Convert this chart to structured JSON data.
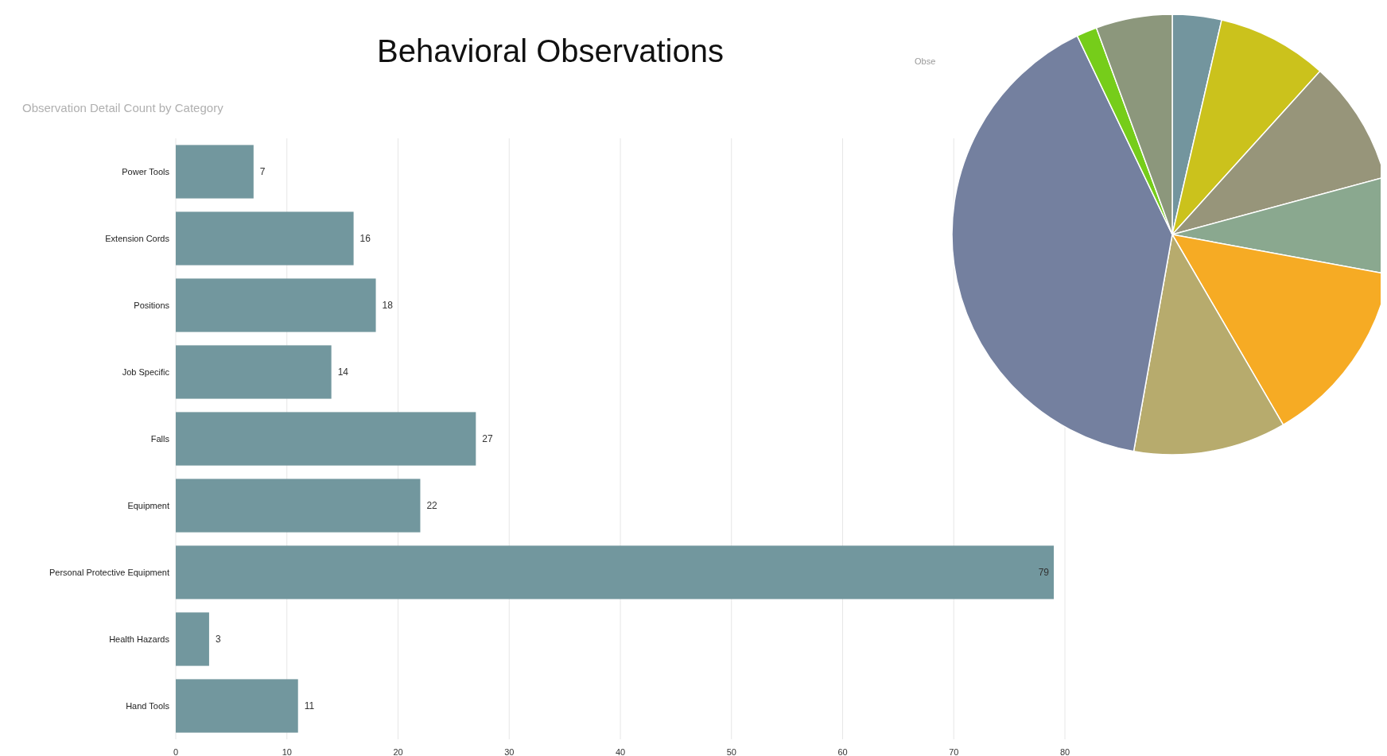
{
  "chart_data": [
    {
      "type": "bar",
      "title": "Behavioral Observations",
      "subtitle": "Observation Detail Count by Category",
      "orientation": "horizontal",
      "categories": [
        "Power Tools",
        "Extension Cords",
        "Positions",
        "Job Specific",
        "Falls",
        "Equipment",
        "Personal Protective Equipment",
        "Health Hazards",
        "Hand Tools"
      ],
      "values": [
        7,
        16,
        18,
        14,
        27,
        22,
        79,
        3,
        11
      ],
      "color": "#72979e",
      "xlim": [
        0,
        80
      ],
      "xticks": [
        0,
        10,
        20,
        30,
        40,
        50,
        60,
        70,
        80
      ],
      "grid": "x",
      "data_labels": true,
      "annotations": [
        "Obse"
      ]
    },
    {
      "type": "pie",
      "categories": [
        null,
        null,
        null,
        null,
        null,
        null,
        null,
        null,
        null
      ],
      "values": [
        3.6,
        8.1,
        9.1,
        7.1,
        13.7,
        11.2,
        40.1,
        1.5,
        5.6
      ],
      "colors": [
        "#73959e",
        "#cbc21c",
        "#97957a",
        "#8aa88f",
        "#f6ab24",
        "#b7ab6d",
        "#74809f",
        "#76cd1a",
        "#8c977c"
      ]
    }
  ]
}
